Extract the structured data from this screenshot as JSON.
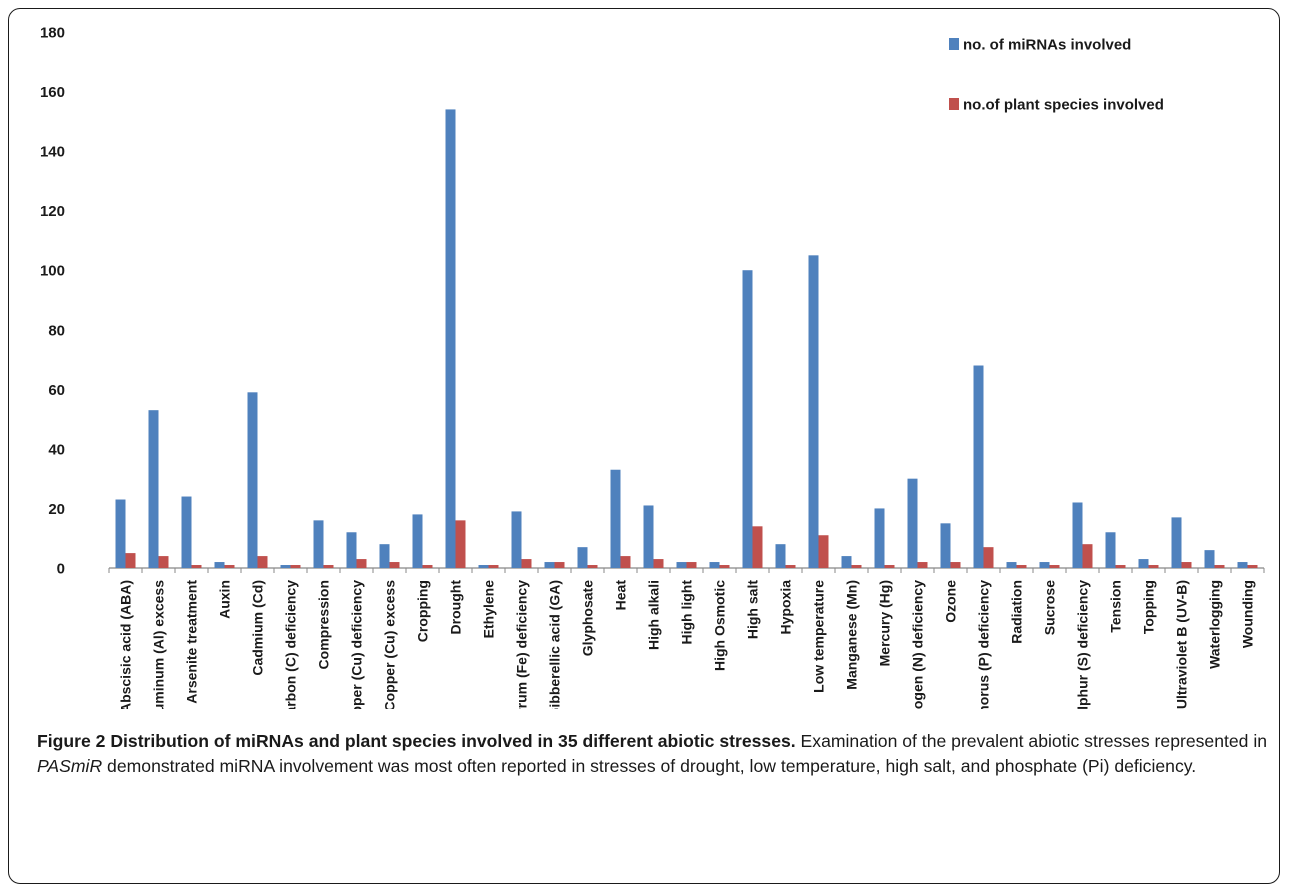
{
  "chart_data": {
    "type": "bar",
    "categories": [
      "Abscisic acid (ABA)",
      "Aluminum (Al) excess",
      "Arsenite treatment",
      "Auxin",
      "Cadmium (Cd)",
      "Carbon (C) deficiency",
      "Compression",
      "Copper (Cu) deficiency",
      "Copper (Cu) excess",
      "Cropping",
      "Drought",
      "Ethylene",
      "Ferrum (Fe) deficiency",
      "Gibberellic acid (GA)",
      "Glyphosate",
      "Heat",
      "High alkali",
      "High light",
      "High Osmotic",
      "High salt",
      "Hypoxia",
      "Low temperature",
      "Manganese (Mn)",
      "Mercury (Hg)",
      "Nitrogen (N) deficiency",
      "Ozone",
      "Phosphorus (P) deficiency",
      "Radiation",
      "Sucrose",
      "Sulphur (S) deficiency",
      "Tension",
      "Topping",
      "Ultraviolet B (UV-B)",
      "Waterlogging",
      "Wounding"
    ],
    "series": [
      {
        "name": "no. of miRNAs involved",
        "color": "#4f81bd",
        "values": [
          23,
          53,
          24,
          2,
          59,
          1,
          16,
          12,
          8,
          18,
          154,
          1,
          19,
          2,
          7,
          33,
          21,
          2,
          2,
          100,
          8,
          105,
          4,
          20,
          30,
          15,
          68,
          2,
          2,
          22,
          12,
          3,
          17,
          6,
          2
        ]
      },
      {
        "name": "no.of plant species involved",
        "color": "#c0504d",
        "values": [
          5,
          4,
          1,
          1,
          4,
          1,
          1,
          3,
          2,
          1,
          16,
          1,
          3,
          2,
          1,
          4,
          3,
          2,
          1,
          14,
          1,
          11,
          1,
          1,
          2,
          2,
          7,
          1,
          1,
          8,
          1,
          1,
          2,
          1,
          1
        ]
      }
    ],
    "ylim": [
      0,
      180
    ],
    "yticks": [
      0,
      20,
      40,
      60,
      80,
      100,
      120,
      140,
      160,
      180
    ],
    "grid": false,
    "legend_position": "top-right"
  },
  "caption": {
    "title": "Figure 2 Distribution of miRNAs and plant species involved in 35 different abiotic stresses.",
    "text_1": " Examination of the prevalent abiotic stresses represented in ",
    "italic": "PASmiR",
    "text_2": " demonstrated miRNA involvement was most often reported in stresses of drought, low temperature, high salt, and phosphate (Pi) deficiency."
  }
}
